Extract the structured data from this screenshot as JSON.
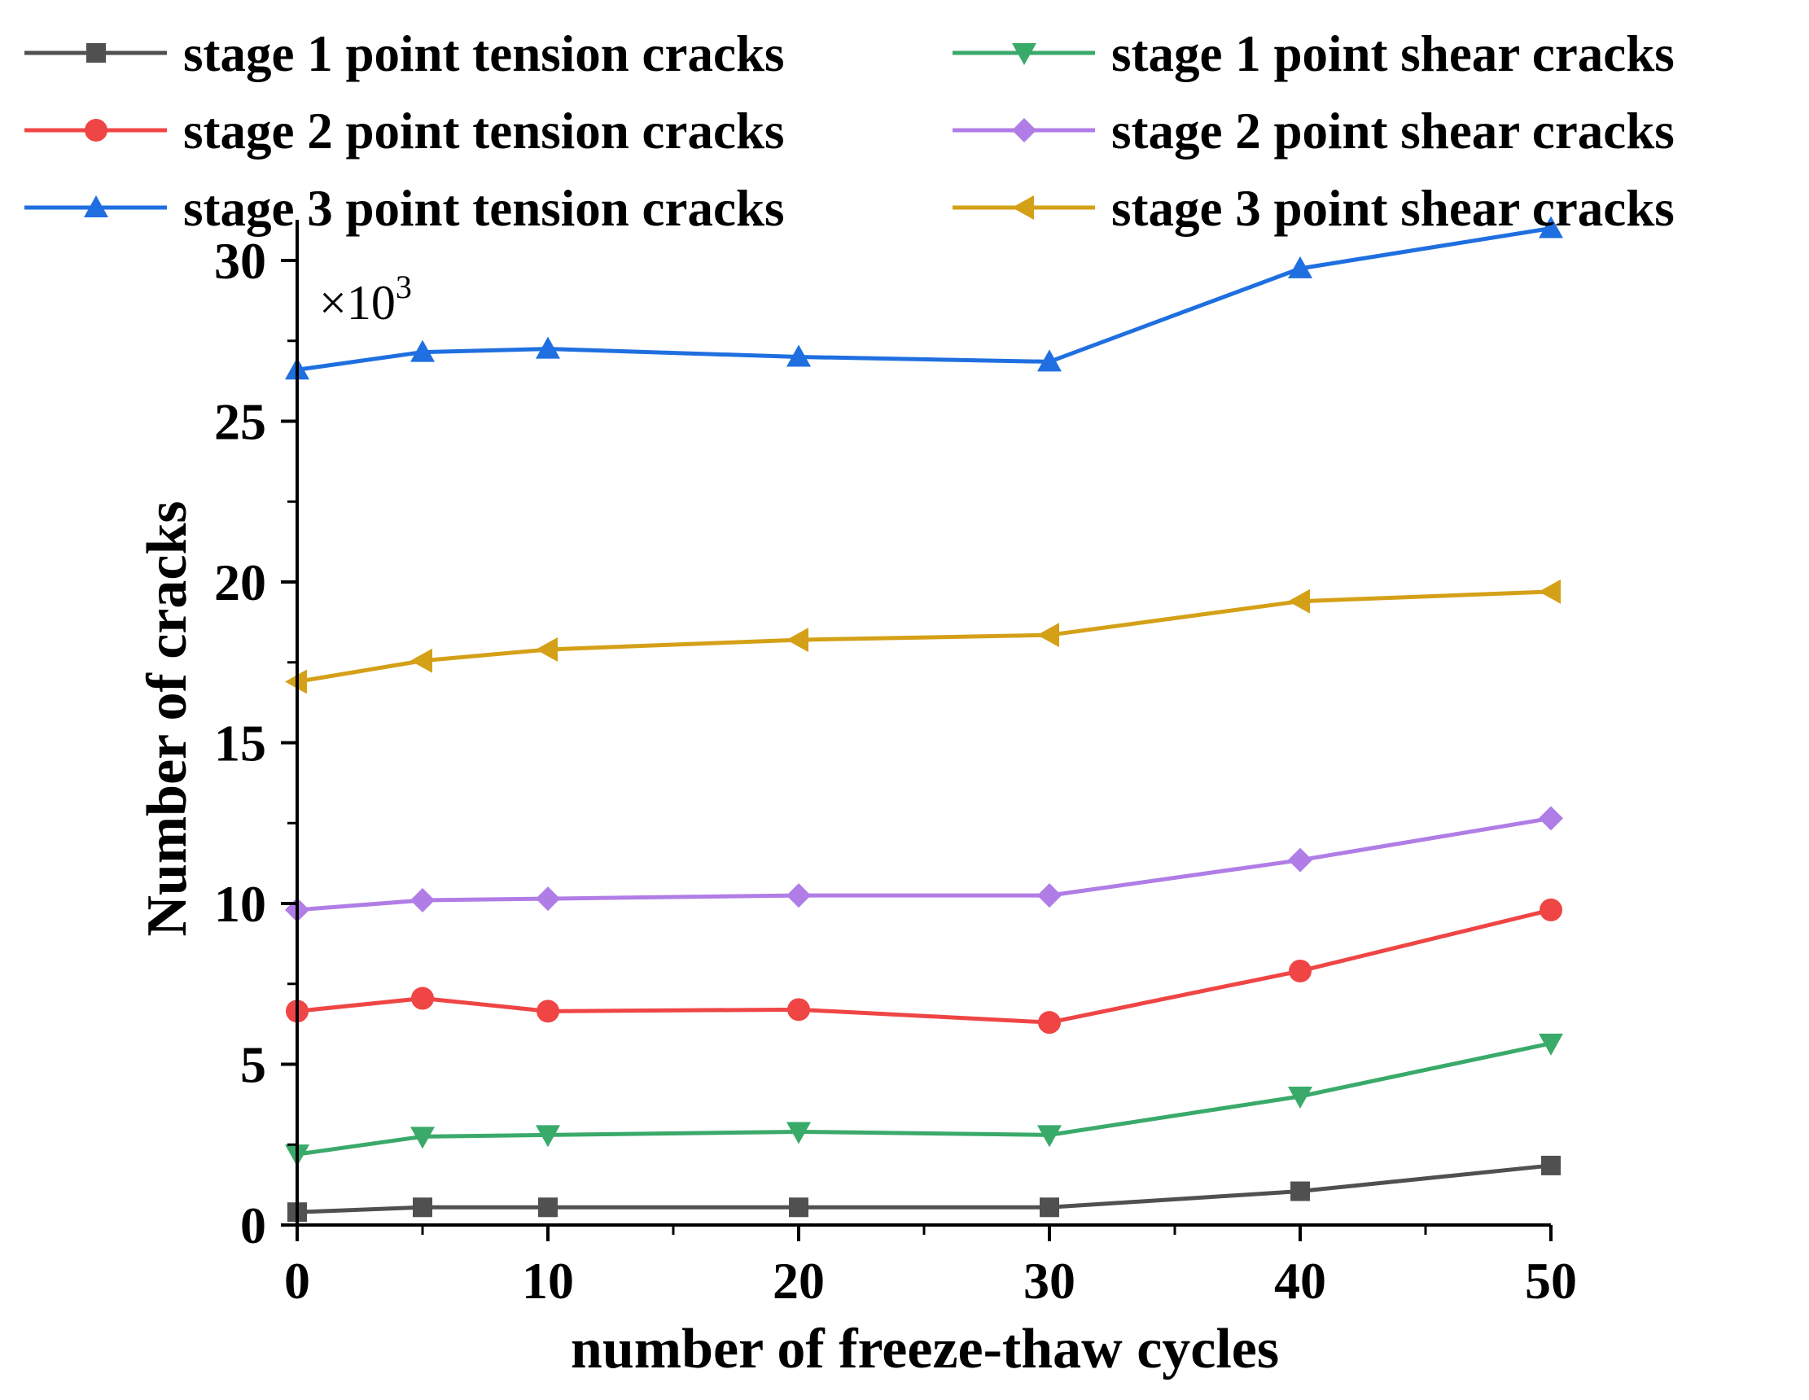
{
  "chart_data": {
    "type": "line",
    "xlabel": "number of freeze-thaw cycles",
    "ylabel": "Number of cracks",
    "y_multiplier": "×10",
    "y_multiplier_exp": "3",
    "x": [
      0,
      5,
      10,
      20,
      30,
      40,
      50
    ],
    "xlim": [
      0,
      50
    ],
    "ylim": [
      0,
      30
    ],
    "x_ticks": [
      0,
      10,
      20,
      30,
      40,
      50
    ],
    "y_ticks": [
      0,
      5,
      10,
      15,
      20,
      25,
      30
    ],
    "grid": false,
    "legend_position": "top",
    "series": [
      {
        "name": "stage 1 point tension cracks",
        "color": "#505050",
        "marker": "square",
        "values": [
          0.4,
          0.55,
          0.55,
          0.55,
          0.55,
          1.05,
          1.85
        ]
      },
      {
        "name": "stage 1 point shear cracks",
        "color": "#3aaa6a",
        "marker": "triangle-down",
        "values": [
          2.2,
          2.75,
          2.8,
          2.9,
          2.8,
          4.0,
          5.65
        ]
      },
      {
        "name": "stage 2 point tension cracks",
        "color": "#ef4545",
        "marker": "circle",
        "values": [
          6.65,
          7.05,
          6.65,
          6.7,
          6.3,
          7.9,
          9.8
        ]
      },
      {
        "name": "stage 2 point shear cracks",
        "color": "#b07de6",
        "marker": "diamond",
        "values": [
          9.8,
          10.1,
          10.15,
          10.25,
          10.25,
          11.35,
          12.65
        ]
      },
      {
        "name": "stage 3 point tension cracks",
        "color": "#1f6fe0",
        "marker": "triangle-up",
        "values": [
          26.6,
          27.15,
          27.25,
          27.0,
          26.85,
          29.75,
          31.0
        ]
      },
      {
        "name": "stage 3 point shear cracks",
        "color": "#d4a017",
        "marker": "triangle-left",
        "values": [
          16.9,
          17.55,
          17.9,
          18.2,
          18.35,
          19.4,
          19.7
        ]
      }
    ]
  }
}
